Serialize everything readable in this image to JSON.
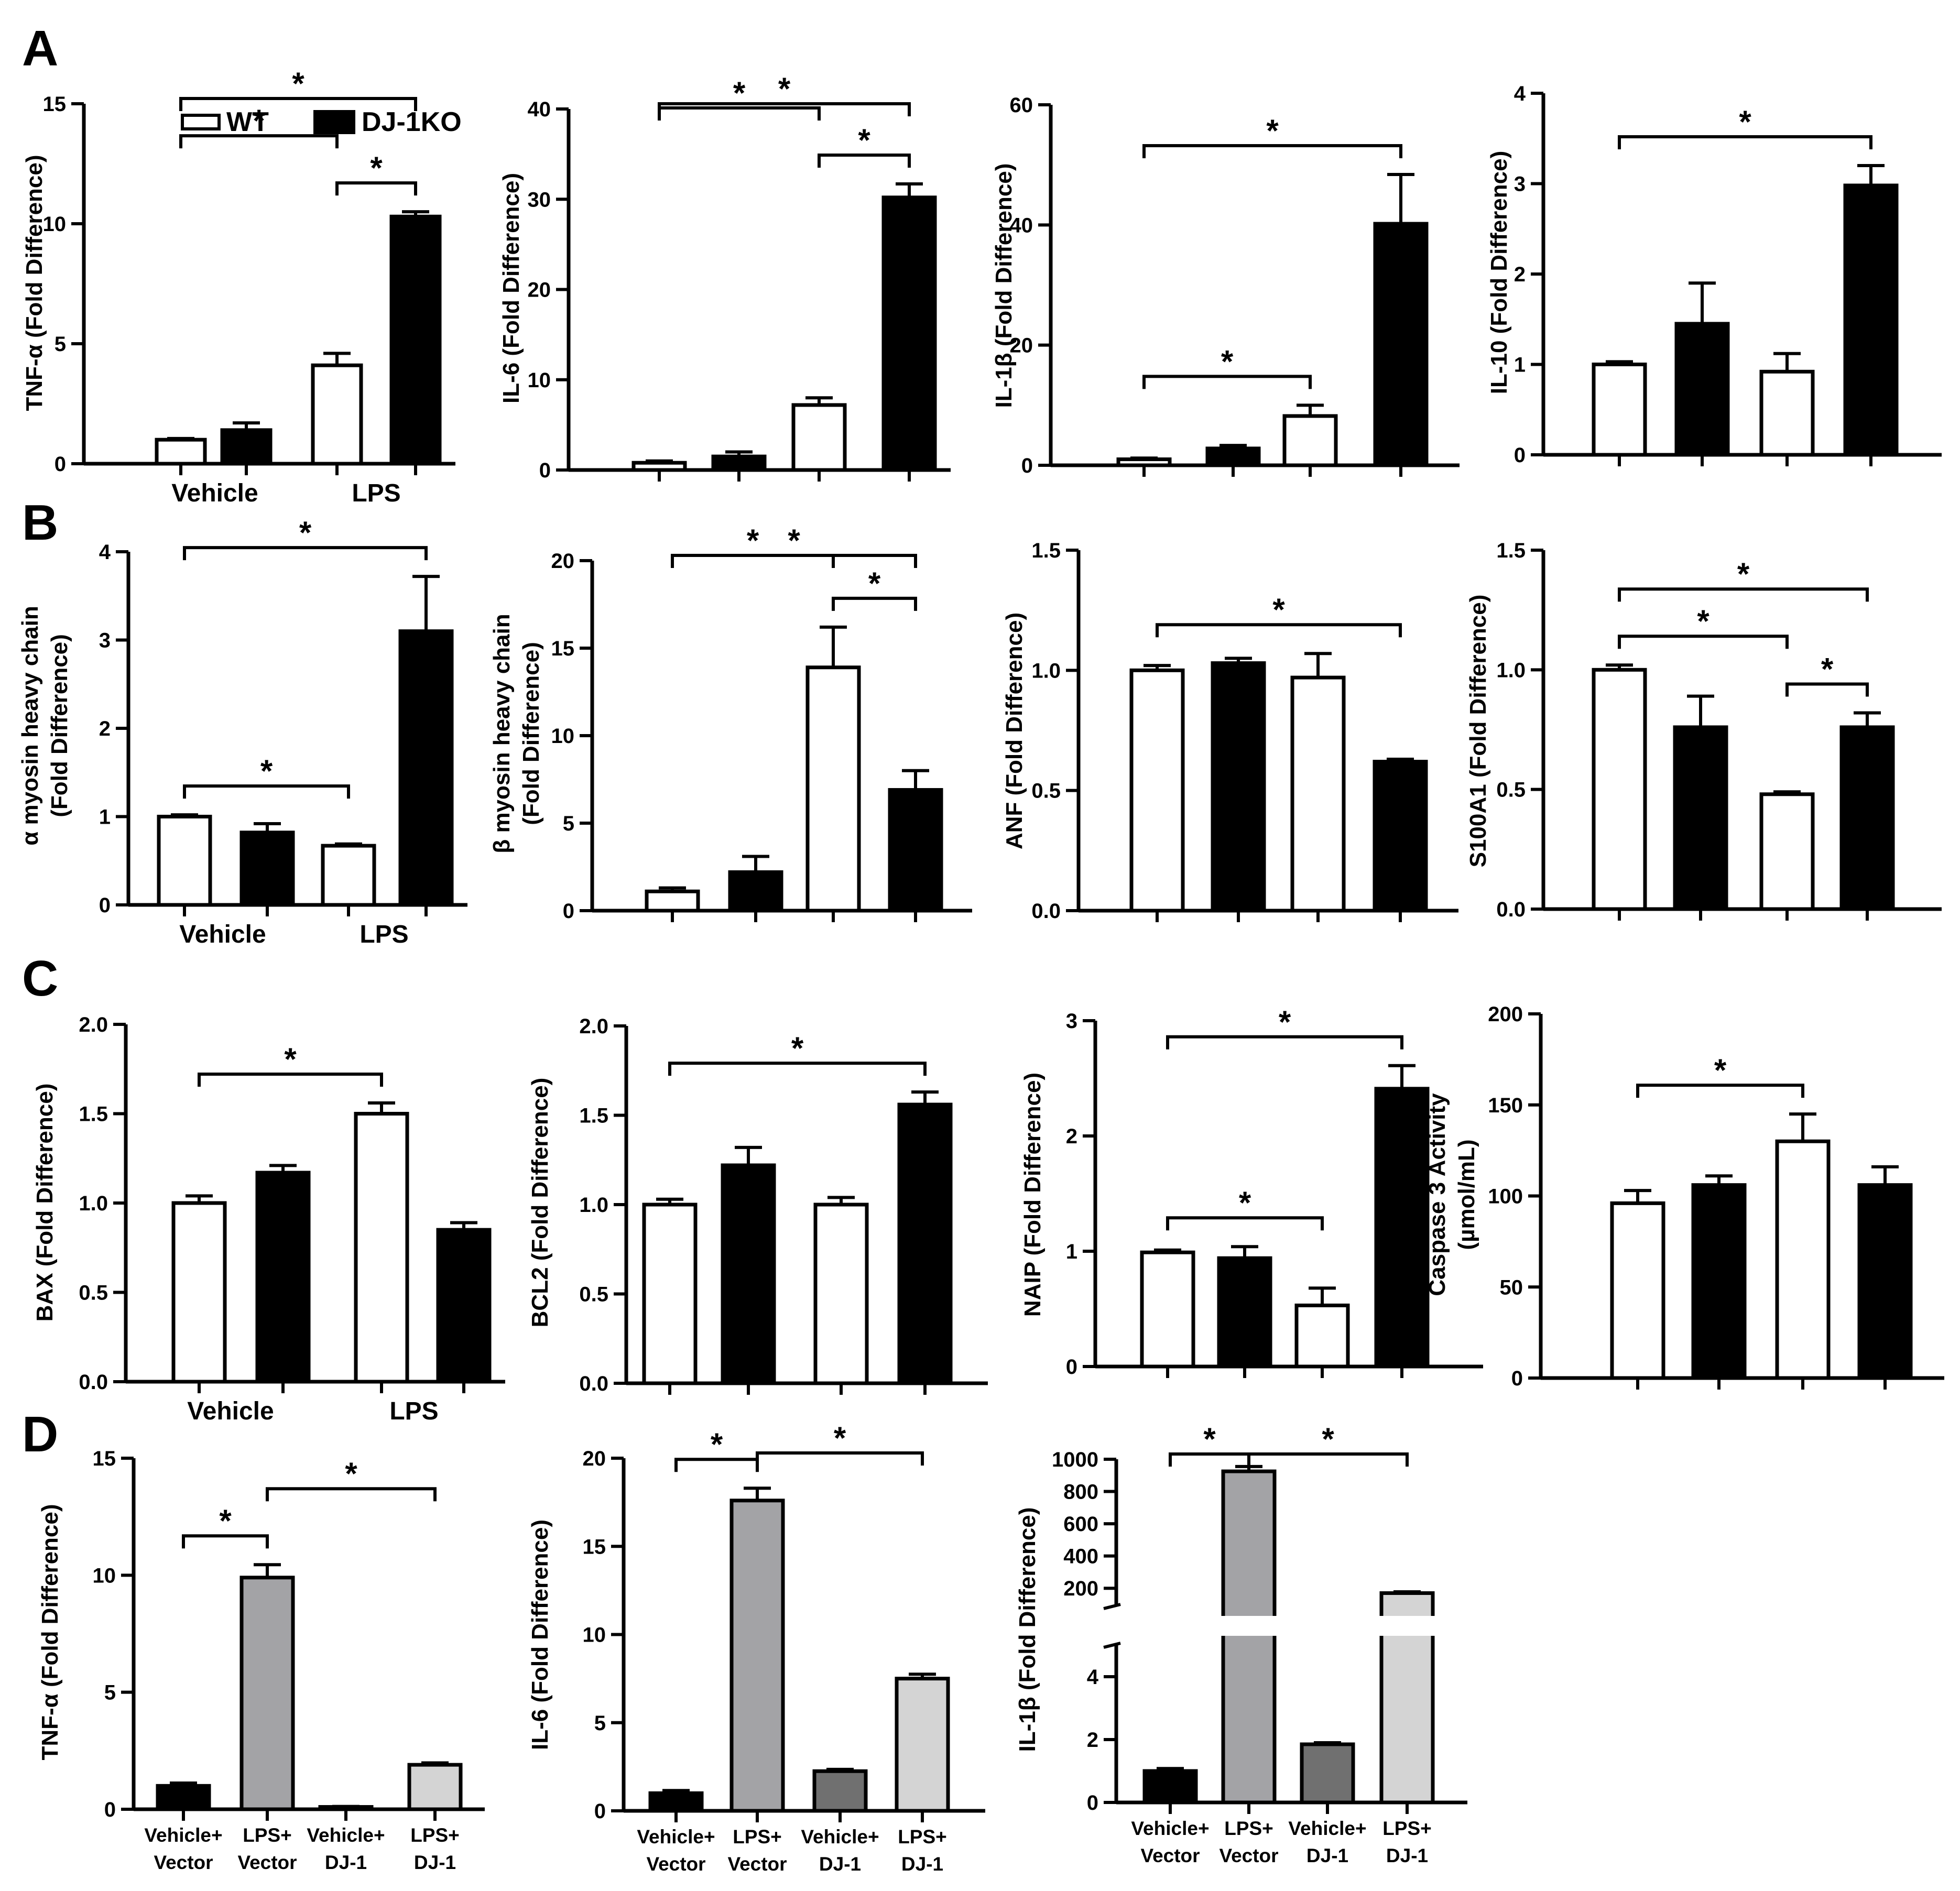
{
  "panel_labels": [
    "A",
    "B",
    "C",
    "D"
  ],
  "legend": {
    "items": [
      {
        "label": "WT",
        "fill": "#ffffff"
      },
      {
        "label": "DJ-1KO",
        "fill": "#000000"
      }
    ]
  },
  "colors": {
    "wt": "#ffffff",
    "ko": "#000000",
    "vehicle_vector": "#000000",
    "lps_vector": "#a3a3a6",
    "vehicle_dj1": "#707070",
    "lps_dj1": "#d4d4d4"
  },
  "chart_data": [
    {
      "id": "A1",
      "type": "bar",
      "ylabel": "TNF-α (Fold Difference)",
      "yticks": [
        "0",
        "5",
        "10",
        "15"
      ],
      "ylim": [
        0,
        15
      ],
      "groups": [
        "Vehicle",
        "LPS"
      ],
      "values": [
        1.0,
        1.4,
        4.1,
        10.3
      ],
      "errors": [
        0.05,
        0.3,
        0.5,
        0.2
      ],
      "fills": [
        "wt",
        "ko",
        "wt",
        "ko"
      ],
      "sig": [
        {
          "from": 0,
          "to": 2,
          "label": "*"
        },
        {
          "from": 0,
          "to": 3,
          "label": "*"
        },
        {
          "from": 2,
          "to": 3,
          "label": "*"
        }
      ]
    },
    {
      "id": "A2",
      "type": "bar",
      "ylabel": "IL-6 (Fold Difference)",
      "yticks": [
        "0",
        "10",
        "20",
        "30",
        "40"
      ],
      "ylim": [
        0,
        40
      ],
      "groups": [],
      "values": [
        0.8,
        1.5,
        7.2,
        30.2
      ],
      "errors": [
        0.2,
        0.5,
        0.8,
        1.5
      ],
      "fills": [
        "wt",
        "ko",
        "wt",
        "ko"
      ],
      "sig": [
        {
          "from": 0,
          "to": 2,
          "label": "*"
        },
        {
          "from": 0,
          "to": 3,
          "label": "*"
        },
        {
          "from": 2,
          "to": 3,
          "label": "*"
        }
      ]
    },
    {
      "id": "A3",
      "type": "bar",
      "ylabel": "IL-1β (Fold Difference)",
      "yticks": [
        "0",
        "20",
        "40",
        "60"
      ],
      "ylim": [
        0,
        60
      ],
      "groups": [],
      "values": [
        1.0,
        2.8,
        8.2,
        40.2
      ],
      "errors": [
        0.2,
        0.5,
        1.8,
        8.2
      ],
      "fills": [
        "wt",
        "ko",
        "wt",
        "ko"
      ],
      "sig": [
        {
          "from": 0,
          "to": 2,
          "label": "*"
        },
        {
          "from": 0,
          "to": 3,
          "label": "*"
        }
      ]
    },
    {
      "id": "A4",
      "type": "bar",
      "ylabel": "IL-10 (Fold Difference)",
      "yticks": [
        "0",
        "1",
        "2",
        "3",
        "4"
      ],
      "ylim": [
        0,
        4
      ],
      "groups": [],
      "values": [
        1.0,
        1.45,
        0.92,
        2.98
      ],
      "errors": [
        0.03,
        0.45,
        0.2,
        0.22
      ],
      "fills": [
        "wt",
        "ko",
        "wt",
        "ko"
      ],
      "sig": [
        {
          "from": 0,
          "to": 3,
          "label": "*"
        }
      ]
    },
    {
      "id": "B1",
      "type": "bar",
      "ylabel": [
        "α myosin heavy chain",
        "(Fold Difference)"
      ],
      "yticks": [
        "0",
        "1",
        "2",
        "3",
        "4"
      ],
      "ylim": [
        0,
        4
      ],
      "groups": [
        "Vehicle",
        "LPS"
      ],
      "values": [
        1.0,
        0.82,
        0.67,
        3.1
      ],
      "errors": [
        0.02,
        0.1,
        0.02,
        0.62
      ],
      "fills": [
        "wt",
        "ko",
        "wt",
        "ko"
      ],
      "sig": [
        {
          "from": 0,
          "to": 2,
          "label": "*"
        },
        {
          "from": 0,
          "to": 3,
          "label": "*"
        }
      ]
    },
    {
      "id": "B2",
      "type": "bar",
      "ylabel": [
        "β myosin heavy chain",
        "(Fold Difference)"
      ],
      "yticks": [
        "0",
        "5",
        "10",
        "15",
        "20"
      ],
      "ylim": [
        0,
        20
      ],
      "groups": [],
      "values": [
        1.1,
        2.2,
        13.9,
        6.9
      ],
      "errors": [
        0.2,
        0.9,
        2.3,
        1.1
      ],
      "fills": [
        "wt",
        "ko",
        "wt",
        "ko"
      ],
      "sig": [
        {
          "from": 0,
          "to": 2,
          "label": "*"
        },
        {
          "from": 0,
          "to": 3,
          "label": "*"
        },
        {
          "from": 2,
          "to": 3,
          "label": "*"
        }
      ]
    },
    {
      "id": "B3",
      "type": "bar",
      "ylabel": "ANF (Fold Difference)",
      "yticks": [
        "0.0",
        "0.5",
        "1.0",
        "1.5"
      ],
      "ylim": [
        0,
        1.5
      ],
      "groups": [],
      "values": [
        1.0,
        1.03,
        0.97,
        0.62
      ],
      "errors": [
        0.02,
        0.02,
        0.1,
        0.01
      ],
      "fills": [
        "wt",
        "ko",
        "wt",
        "ko"
      ],
      "sig": [
        {
          "from": 0,
          "to": 3,
          "label": "*"
        }
      ]
    },
    {
      "id": "B4",
      "type": "bar",
      "ylabel": "S100A1 (Fold Difference)",
      "yticks": [
        "0.0",
        "0.5",
        "1.0",
        "1.5"
      ],
      "ylim": [
        0,
        1.5
      ],
      "groups": [],
      "values": [
        1.0,
        0.76,
        0.48,
        0.76
      ],
      "errors": [
        0.02,
        0.13,
        0.01,
        0.06
      ],
      "fills": [
        "wt",
        "ko",
        "wt",
        "ko"
      ],
      "sig": [
        {
          "from": 0,
          "to": 2,
          "label": "*"
        },
        {
          "from": 0,
          "to": 3,
          "label": "*"
        },
        {
          "from": 2,
          "to": 3,
          "label": "*"
        }
      ]
    },
    {
      "id": "C1",
      "type": "bar",
      "ylabel": "BAX (Fold Difference)",
      "yticks": [
        "0.0",
        "0.5",
        "1.0",
        "1.5",
        "2.0"
      ],
      "ylim": [
        0,
        2
      ],
      "groups": [
        "Vehicle",
        "LPS"
      ],
      "values": [
        1.0,
        1.17,
        1.5,
        0.85
      ],
      "errors": [
        0.04,
        0.04,
        0.06,
        0.04
      ],
      "fills": [
        "wt",
        "ko",
        "wt",
        "ko"
      ],
      "sig": [
        {
          "from": 0,
          "to": 2,
          "label": "*"
        }
      ]
    },
    {
      "id": "C2",
      "type": "bar",
      "ylabel": "BCL2 (Fold Difference)",
      "yticks": [
        "0.0",
        "0.5",
        "1.0",
        "1.5",
        "2.0"
      ],
      "ylim": [
        0,
        2
      ],
      "groups": [],
      "values": [
        1.0,
        1.22,
        1.0,
        1.56
      ],
      "errors": [
        0.03,
        0.1,
        0.04,
        0.07
      ],
      "fills": [
        "wt",
        "ko",
        "wt",
        "ko"
      ],
      "sig": [
        {
          "from": 0,
          "to": 3,
          "label": "*"
        }
      ]
    },
    {
      "id": "C3",
      "type": "bar",
      "ylabel": "NAIP (Fold Difference)",
      "yticks": [
        "0",
        "1",
        "2",
        "3"
      ],
      "ylim": [
        0,
        3
      ],
      "groups": [],
      "values": [
        0.99,
        0.94,
        0.53,
        2.41
      ],
      "errors": [
        0.02,
        0.1,
        0.15,
        0.2
      ],
      "fills": [
        "wt",
        "ko",
        "wt",
        "ko"
      ],
      "sig": [
        {
          "from": 0,
          "to": 2,
          "label": "*"
        },
        {
          "from": 0,
          "to": 3,
          "label": "*"
        }
      ]
    },
    {
      "id": "C4",
      "type": "bar",
      "ylabel": [
        "Caspase 3 Activity",
        "(µmol/mL)"
      ],
      "yticks": [
        "0",
        "50",
        "100",
        "150",
        "200"
      ],
      "ylim": [
        0,
        200
      ],
      "groups": [],
      "values": [
        96,
        106,
        130,
        106
      ],
      "errors": [
        7,
        5,
        15,
        10
      ],
      "fills": [
        "wt",
        "ko",
        "wt",
        "ko"
      ],
      "sig": [
        {
          "from": 0,
          "to": 2,
          "label": "*"
        }
      ]
    },
    {
      "id": "D1",
      "type": "bar",
      "ylabel": "TNF-α (Fold Difference)",
      "yticks": [
        "0",
        "5",
        "10",
        "15"
      ],
      "ylim": [
        0,
        15
      ],
      "categories": [
        [
          "Vehicle+",
          "Vector"
        ],
        [
          "LPS+",
          "Vector"
        ],
        [
          "Vehicle+",
          "DJ-1"
        ],
        [
          "LPS+",
          "DJ-1"
        ]
      ],
      "values": [
        1.0,
        9.9,
        0.1,
        1.9
      ],
      "errors": [
        0.12,
        0.55,
        0.02,
        0.08
      ],
      "fills": [
        "vehicle_vector",
        "lps_vector",
        "vehicle_dj1",
        "lps_dj1"
      ],
      "sig": [
        {
          "from": 0,
          "to": 1,
          "label": "*"
        },
        {
          "from": 1,
          "to": 3,
          "label": "*"
        }
      ]
    },
    {
      "id": "D2",
      "type": "bar",
      "ylabel": "IL-6 (Fold Difference)",
      "yticks": [
        "0",
        "5",
        "10",
        "15",
        "20"
      ],
      "ylim": [
        0,
        20
      ],
      "categories": [
        [
          "Vehicle+",
          "Vector"
        ],
        [
          "LPS+",
          "Vector"
        ],
        [
          "Vehicle+",
          "DJ-1"
        ],
        [
          "LPS+",
          "DJ-1"
        ]
      ],
      "values": [
        1.0,
        17.6,
        2.25,
        7.5
      ],
      "errors": [
        0.15,
        0.7,
        0.1,
        0.25
      ],
      "fills": [
        "vehicle_vector",
        "lps_vector",
        "vehicle_dj1",
        "lps_dj1"
      ],
      "sig": [
        {
          "from": 0,
          "to": 1,
          "label": "*"
        },
        {
          "from": 1,
          "to": 3,
          "label": "*"
        }
      ]
    },
    {
      "id": "D3",
      "type": "bar",
      "ylabel": "IL-1β (Fold Difference)",
      "broken_axis": true,
      "yticks_low": [
        "0",
        "2",
        "4"
      ],
      "ylim_low": [
        0,
        5
      ],
      "yticks_high": [
        "200",
        "400",
        "600",
        "800",
        "1000"
      ],
      "ylim_high": [
        100,
        1000
      ],
      "categories": [
        [
          "Vehicle+",
          "Vector"
        ],
        [
          "LPS+",
          "Vector"
        ],
        [
          "Vehicle+",
          "DJ-1"
        ],
        [
          "LPS+",
          "DJ-1"
        ]
      ],
      "values": [
        1.0,
        925,
        1.85,
        170
      ],
      "errors": [
        0.08,
        30,
        0.05,
        8
      ],
      "fills": [
        "vehicle_vector",
        "lps_vector",
        "vehicle_dj1",
        "lps_dj1"
      ],
      "sig": [
        {
          "from": 0,
          "to": 1,
          "label": "*"
        },
        {
          "from": 1,
          "to": 3,
          "label": "*"
        }
      ]
    }
  ]
}
